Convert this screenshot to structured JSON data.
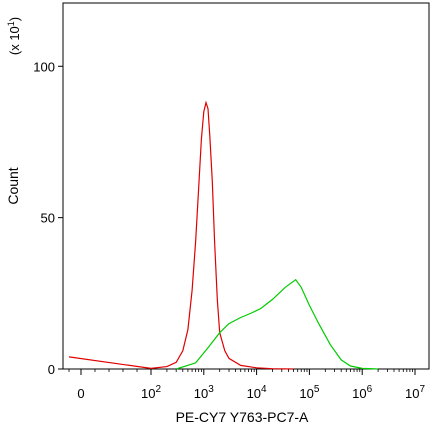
{
  "chart_data": {
    "type": "line",
    "xlabel": "PE-CY7 Y763-PC7-A",
    "ylabel": "Count",
    "y_multiplier_label": "(x 10",
    "y_multiplier_exp": "1",
    "y_multiplier_close": ")",
    "x_scale": "logicle",
    "xlim": [
      -30,
      10000000
    ],
    "ylim": [
      0,
      1100
    ],
    "yticks": [
      {
        "value": 0,
        "label": "0"
      },
      {
        "value": 500,
        "label": "50"
      },
      {
        "value": 1000,
        "label": "100"
      }
    ],
    "xticks": [
      {
        "value": 0,
        "base": "0",
        "exp": ""
      },
      {
        "value": 100,
        "base": "10",
        "exp": "2"
      },
      {
        "value": 1000,
        "base": "10",
        "exp": "3"
      },
      {
        "value": 10000,
        "base": "10",
        "exp": "4"
      },
      {
        "value": 100000,
        "base": "10",
        "exp": "5"
      },
      {
        "value": 1000000,
        "base": "10",
        "exp": "6"
      },
      {
        "value": 10000000,
        "base": "10",
        "exp": "7"
      }
    ],
    "grid": false,
    "series": [
      {
        "color": "#e00000",
        "points": [
          [
            -20,
            40
          ],
          [
            100,
            2
          ],
          [
            200,
            8
          ],
          [
            300,
            22
          ],
          [
            400,
            60
          ],
          [
            500,
            130
          ],
          [
            600,
            260
          ],
          [
            700,
            420
          ],
          [
            800,
            600
          ],
          [
            900,
            760
          ],
          [
            1000,
            850
          ],
          [
            1100,
            880
          ],
          [
            1200,
            860
          ],
          [
            1300,
            770
          ],
          [
            1450,
            620
          ],
          [
            1600,
            420
          ],
          [
            1800,
            230
          ],
          [
            2000,
            120
          ],
          [
            2500,
            60
          ],
          [
            3000,
            35
          ],
          [
            5000,
            12
          ],
          [
            10000,
            4
          ],
          [
            20000,
            1
          ],
          [
            50000,
            0
          ]
        ]
      },
      {
        "color": "#00cc00",
        "points": [
          [
            300,
            0
          ],
          [
            700,
            20
          ],
          [
            1200,
            70
          ],
          [
            2000,
            120
          ],
          [
            3000,
            150
          ],
          [
            5000,
            170
          ],
          [
            8000,
            185
          ],
          [
            12000,
            200
          ],
          [
            20000,
            230
          ],
          [
            35000,
            270
          ],
          [
            55000,
            295
          ],
          [
            70000,
            270
          ],
          [
            100000,
            210
          ],
          [
            150000,
            150
          ],
          [
            250000,
            80
          ],
          [
            400000,
            30
          ],
          [
            600000,
            10
          ],
          [
            1000000,
            2
          ],
          [
            2000000,
            0
          ]
        ]
      }
    ]
  }
}
